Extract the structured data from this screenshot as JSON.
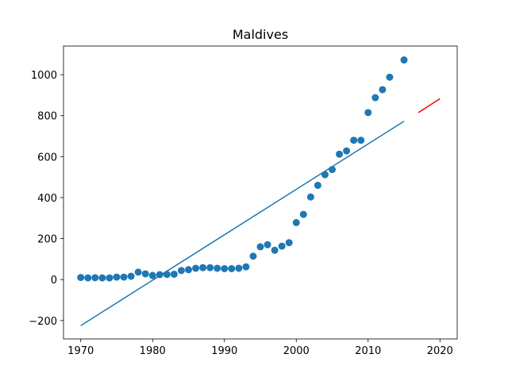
{
  "chart_data": {
    "type": "scatter",
    "title": "Maldives",
    "xlabel": "",
    "ylabel": "",
    "xlim": [
      1967.6,
      2022.4
    ],
    "ylim": [
      -290,
      1140
    ],
    "xticks": [
      1970,
      1980,
      1990,
      2000,
      2010,
      2020
    ],
    "yticks": [
      -200,
      0,
      200,
      400,
      600,
      800,
      1000
    ],
    "ytick_labels": [
      "−200",
      "0",
      "200",
      "400",
      "600",
      "800",
      "1000"
    ],
    "grid": false,
    "series": [
      {
        "kind": "scatter",
        "color": "#1f77b4",
        "points": [
          [
            1970,
            10
          ],
          [
            1971,
            8
          ],
          [
            1972,
            9
          ],
          [
            1973,
            8
          ],
          [
            1974,
            8
          ],
          [
            1975,
            12
          ],
          [
            1976,
            12
          ],
          [
            1977,
            16
          ],
          [
            1978,
            36
          ],
          [
            1979,
            28
          ],
          [
            1980,
            20
          ],
          [
            1981,
            24
          ],
          [
            1982,
            25
          ],
          [
            1983,
            26
          ],
          [
            1984,
            44
          ],
          [
            1985,
            48
          ],
          [
            1986,
            55
          ],
          [
            1987,
            58
          ],
          [
            1988,
            58
          ],
          [
            1989,
            55
          ],
          [
            1990,
            53
          ],
          [
            1991,
            53
          ],
          [
            1992,
            55
          ],
          [
            1993,
            62
          ],
          [
            1994,
            114
          ],
          [
            1995,
            160
          ],
          [
            1996,
            170
          ],
          [
            1997,
            143
          ],
          [
            1998,
            163
          ],
          [
            1999,
            180
          ],
          [
            2000,
            278
          ],
          [
            2001,
            318
          ],
          [
            2002,
            403
          ],
          [
            2003,
            460
          ],
          [
            2004,
            512
          ],
          [
            2005,
            537
          ],
          [
            2006,
            612
          ],
          [
            2007,
            628
          ],
          [
            2008,
            680
          ],
          [
            2009,
            680
          ],
          [
            2010,
            815
          ],
          [
            2011,
            888
          ],
          [
            2012,
            927
          ],
          [
            2013,
            988
          ],
          [
            2015,
            1072
          ]
        ]
      },
      {
        "kind": "line",
        "color": "#1f77b4",
        "points": [
          [
            1970,
            -225
          ],
          [
            2015,
            773
          ]
        ]
      },
      {
        "kind": "line",
        "color": "#ff0000",
        "points": [
          [
            2017,
            815
          ],
          [
            2020,
            883
          ]
        ]
      }
    ]
  }
}
